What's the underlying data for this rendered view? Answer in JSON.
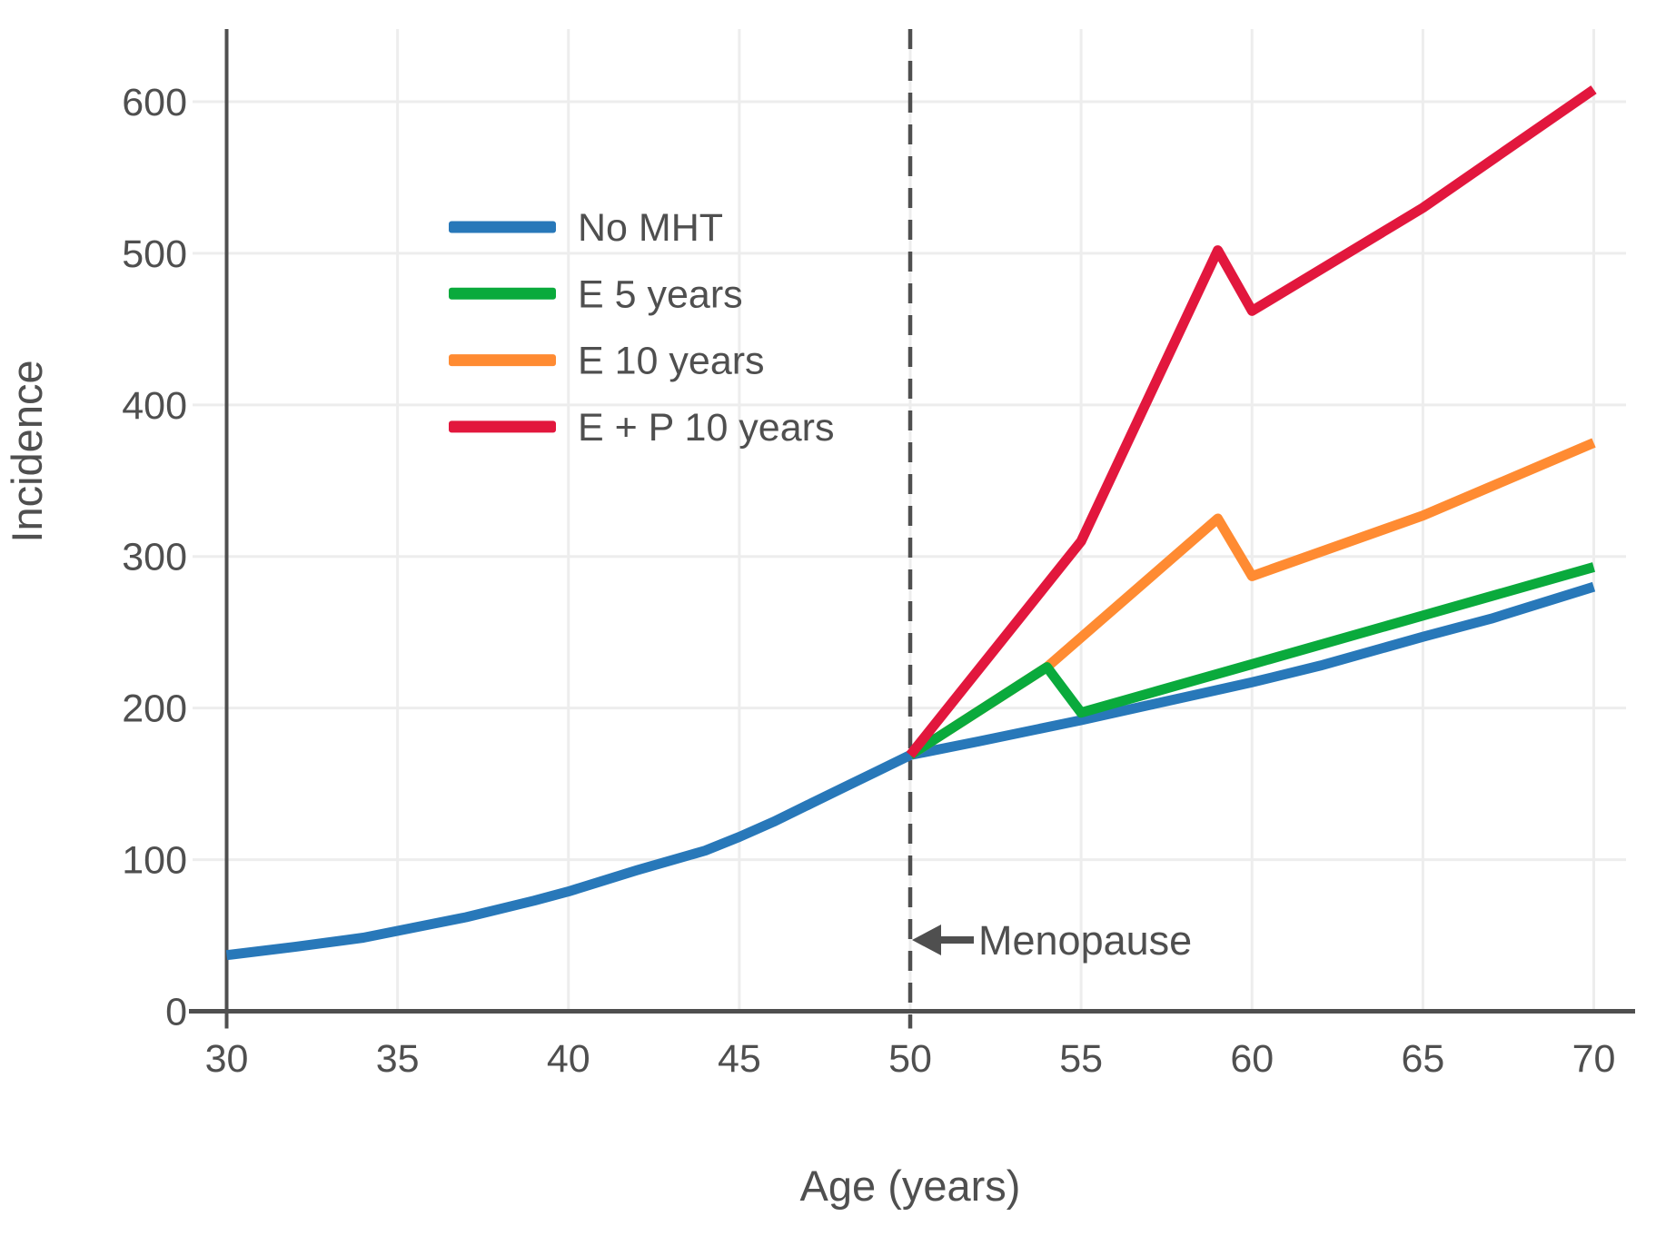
{
  "figure": {
    "background": "#ffffff"
  },
  "chart_data": {
    "type": "line",
    "title": "",
    "xlabel": "Age (years)",
    "ylabel": "Incidence",
    "xlim": [
      30,
      70
    ],
    "ylim": [
      0,
      650
    ],
    "xticks": [
      30,
      35,
      40,
      45,
      50,
      55,
      60,
      65,
      70
    ],
    "yticks": [
      0,
      100,
      200,
      300,
      400,
      500,
      600
    ],
    "grid": true,
    "legend_position": "upper-left",
    "axis_color": "#4f4f4f",
    "grid_color": "#ededed",
    "text_color": "#4f4f4f",
    "vline": {
      "x": 50,
      "style": "dashed",
      "color": "#4f4f4f"
    },
    "annotation": {
      "text": "Menopause",
      "arrow": "left",
      "arrow_to_x": 50,
      "y_value": 47
    },
    "series": [
      {
        "name": "No MHT",
        "color": "#2878b9",
        "points": [
          [
            30,
            37
          ],
          [
            32,
            42.5
          ],
          [
            34,
            48.5
          ],
          [
            35,
            53
          ],
          [
            37,
            62
          ],
          [
            39,
            73
          ],
          [
            40,
            79
          ],
          [
            42,
            93
          ],
          [
            44,
            106
          ],
          [
            45,
            115
          ],
          [
            46,
            125
          ],
          [
            47,
            136
          ],
          [
            48,
            147
          ],
          [
            49,
            158
          ],
          [
            50,
            169
          ],
          [
            52,
            178
          ],
          [
            55,
            192
          ],
          [
            57,
            202
          ],
          [
            60,
            217
          ],
          [
            62,
            228
          ],
          [
            65,
            247
          ],
          [
            67,
            259
          ],
          [
            70,
            280
          ]
        ]
      },
      {
        "name": "E 5 years",
        "color": "#0aaa3c",
        "points": [
          [
            50,
            169
          ],
          [
            54,
            227
          ],
          [
            55,
            197
          ],
          [
            60,
            229
          ],
          [
            65,
            261
          ],
          [
            70,
            293
          ]
        ]
      },
      {
        "name": "E 10 years",
        "color": "#ff8b32",
        "points": [
          [
            50,
            169
          ],
          [
            54,
            227
          ],
          [
            59,
            325
          ],
          [
            60,
            287
          ],
          [
            65,
            327
          ],
          [
            70,
            375
          ]
        ]
      },
      {
        "name": "E + P 10 years",
        "color": "#e2173d",
        "points": [
          [
            50,
            169
          ],
          [
            55,
            310
          ],
          [
            59,
            502
          ],
          [
            60,
            462
          ],
          [
            65,
            530
          ],
          [
            70,
            608
          ]
        ]
      }
    ]
  }
}
